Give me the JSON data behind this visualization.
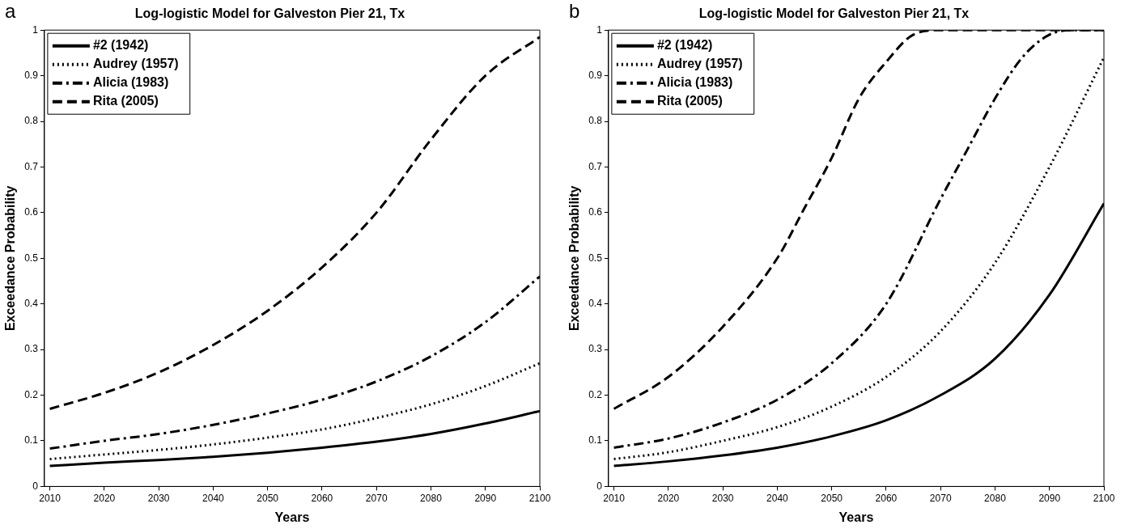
{
  "chart_data": [
    {
      "type": "line",
      "title": "Log-logistic Model for Galveston Pier 21, Tx",
      "xlabel": "Years",
      "ylabel": "Exceedance Probability",
      "annotations": [
        "a"
      ],
      "legend": "top left",
      "grid": false,
      "marker": "none",
      "xlim": [
        2009,
        2100
      ],
      "ylim": [
        0,
        1
      ],
      "xticks": [
        2010,
        2020,
        2030,
        2040,
        2050,
        2060,
        2070,
        2080,
        2090,
        2100
      ],
      "yticks": [
        0,
        0.1,
        0.2,
        0.3,
        0.4,
        0.5,
        0.6,
        0.7,
        0.8,
        0.9,
        1
      ],
      "x": [
        2010,
        2020,
        2030,
        2040,
        2050,
        2060,
        2070,
        2080,
        2090,
        2100
      ],
      "series": [
        {
          "name": "#2 (1942)",
          "color": "#000000",
          "line_style": "solid",
          "values": [
            0.045,
            0.052,
            0.058,
            0.065,
            0.074,
            0.085,
            0.098,
            0.115,
            0.138,
            0.165
          ]
        },
        {
          "name": "Audrey (1957)",
          "color": "#000000",
          "line_style": "dotted",
          "values": [
            0.06,
            0.07,
            0.08,
            0.092,
            0.107,
            0.125,
            0.15,
            0.18,
            0.22,
            0.27
          ]
        },
        {
          "name": "Alicia (1983)",
          "color": "#000000",
          "line_style": "dashdot",
          "values": [
            0.083,
            0.1,
            0.115,
            0.135,
            0.16,
            0.19,
            0.23,
            0.285,
            0.36,
            0.46
          ]
        },
        {
          "name": "Rita (2005)",
          "color": "#000000",
          "line_style": "dashed",
          "values": [
            0.17,
            0.205,
            0.25,
            0.31,
            0.385,
            0.48,
            0.6,
            0.76,
            0.9,
            0.985
          ]
        }
      ]
    },
    {
      "type": "line",
      "title": "Log-logistic Model for Galveston Pier 21, Tx",
      "xlabel": "Years",
      "ylabel": "Exceedance Probability",
      "annotations": [
        "b"
      ],
      "legend": "top left",
      "grid": false,
      "marker": "none",
      "xlim": [
        2009,
        2100
      ],
      "ylim": [
        0,
        1
      ],
      "xticks": [
        2010,
        2020,
        2030,
        2040,
        2050,
        2060,
        2070,
        2080,
        2090,
        2100
      ],
      "yticks": [
        0,
        0.1,
        0.2,
        0.3,
        0.4,
        0.5,
        0.6,
        0.7,
        0.8,
        0.9,
        1
      ],
      "series": [
        {
          "name": "#2 (1942)",
          "color": "#000000",
          "line_style": "solid",
          "x": [
            2010,
            2020,
            2030,
            2040,
            2050,
            2060,
            2070,
            2080,
            2090,
            2100
          ],
          "values": [
            0.045,
            0.055,
            0.068,
            0.085,
            0.11,
            0.145,
            0.2,
            0.28,
            0.42,
            0.62
          ]
        },
        {
          "name": "Audrey (1957)",
          "color": "#000000",
          "line_style": "dotted",
          "x": [
            2010,
            2020,
            2030,
            2040,
            2050,
            2060,
            2070,
            2080,
            2090,
            2100
          ],
          "values": [
            0.06,
            0.075,
            0.1,
            0.13,
            0.175,
            0.24,
            0.34,
            0.49,
            0.7,
            0.94
          ]
        },
        {
          "name": "Alicia (1983)",
          "color": "#000000",
          "line_style": "dashdot",
          "x": [
            2010,
            2020,
            2030,
            2040,
            2050,
            2060,
            2070,
            2075,
            2080,
            2085,
            2090,
            2095,
            2100
          ],
          "values": [
            0.085,
            0.105,
            0.14,
            0.19,
            0.27,
            0.4,
            0.63,
            0.74,
            0.85,
            0.94,
            0.99,
            1,
            1
          ]
        },
        {
          "name": "Rita (2005)",
          "color": "#000000",
          "line_style": "dashed",
          "x": [
            2010,
            2020,
            2030,
            2040,
            2045,
            2050,
            2055,
            2060,
            2065,
            2070,
            2080,
            2090,
            2100
          ],
          "values": [
            0.17,
            0.24,
            0.35,
            0.5,
            0.61,
            0.72,
            0.85,
            0.93,
            0.99,
            1,
            1,
            1,
            1
          ]
        }
      ]
    }
  ]
}
